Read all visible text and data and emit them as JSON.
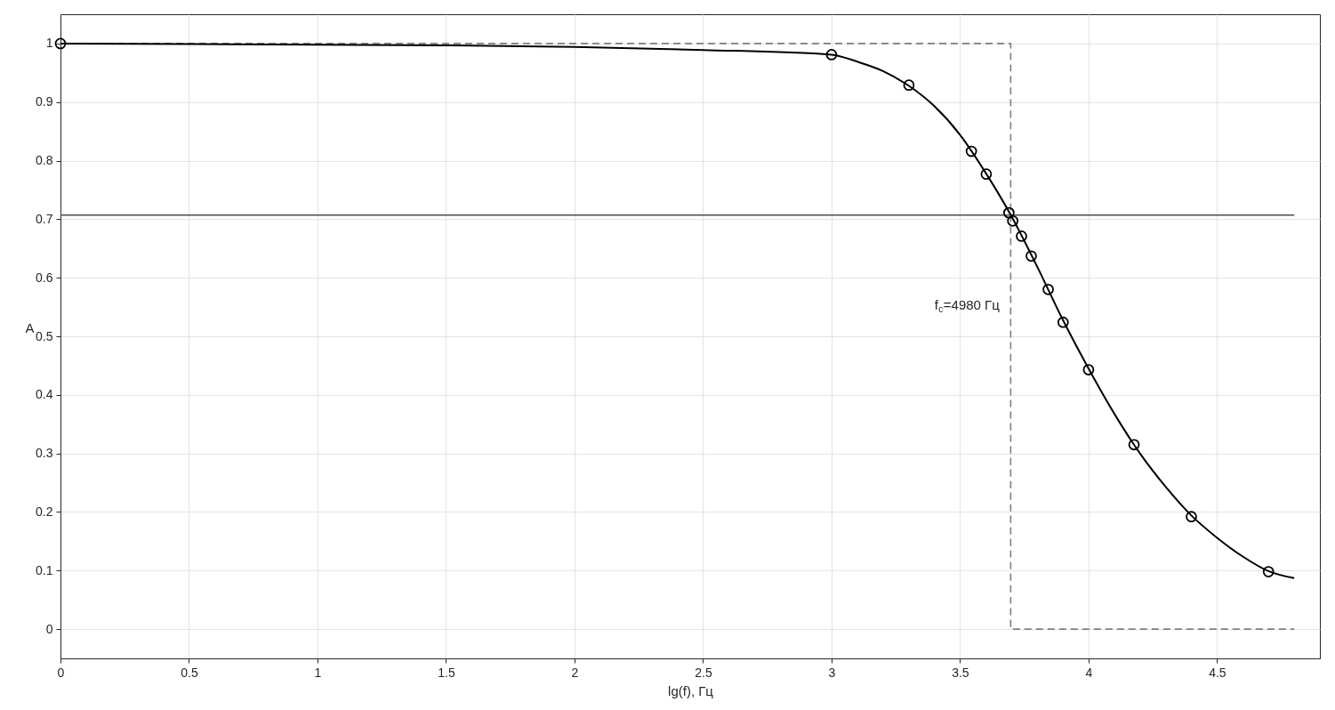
{
  "chart_data": {
    "type": "line",
    "xlabel": "lg(f), Гц",
    "ylabel": "A",
    "xlim": [
      0,
      4.9
    ],
    "ylim": [
      -0.05,
      1.05
    ],
    "xticks": [
      0,
      0.5,
      1,
      1.5,
      2,
      2.5,
      3,
      3.5,
      4,
      4.5
    ],
    "yticks": [
      0,
      0.1,
      0.2,
      0.3,
      0.4,
      0.5,
      0.6,
      0.7,
      0.8,
      0.9,
      1
    ],
    "grid": true,
    "annotations": [
      "f$_{c}$=4980 Гц"
    ],
    "series": [
      {
        "color": "#4d4d4d",
        "line_style": "solid",
        "marker": "none",
        "x": [
          0,
          4.8
        ],
        "values": [
          0.707,
          0.707
        ]
      },
      {
        "color": "#7f7f7f",
        "line_style": "dashed",
        "marker": "none",
        "x": [
          0,
          3.697,
          3.697,
          4.8
        ],
        "values": [
          1,
          1,
          0,
          0
        ]
      },
      {
        "color": "#000000",
        "line_style": "solid",
        "marker": "none",
        "x": [
          0,
          0.5,
          1,
          1.5,
          2,
          2.5,
          3,
          3.1,
          3.2,
          3.3,
          3.4,
          3.5,
          3.6,
          3.7,
          3.8,
          3.9,
          4,
          4.1,
          4.2,
          4.3,
          4.4,
          4.5,
          4.6,
          4.7,
          4.8
        ],
        "values": [
          1,
          0.999,
          0.998,
          0.997,
          0.994,
          0.989,
          0.981,
          0.969,
          0.953,
          0.928,
          0.893,
          0.844,
          0.779,
          0.705,
          0.619,
          0.528,
          0.445,
          0.368,
          0.3,
          0.243,
          0.194,
          0.156,
          0.124,
          0.099,
          0.087
        ]
      },
      {
        "type": "scatter",
        "color": "#000000",
        "marker": "circle",
        "x": [
          0,
          3,
          3.301,
          3.544,
          3.602,
          3.69,
          3.705,
          3.739,
          3.777,
          3.843,
          3.901,
          4,
          4.177,
          4.4,
          4.7
        ],
        "values": [
          1,
          0.981,
          0.929,
          0.816,
          0.777,
          0.711,
          0.697,
          0.671,
          0.637,
          0.58,
          0.524,
          0.443,
          0.315,
          0.192,
          0.098
        ]
      }
    ]
  }
}
